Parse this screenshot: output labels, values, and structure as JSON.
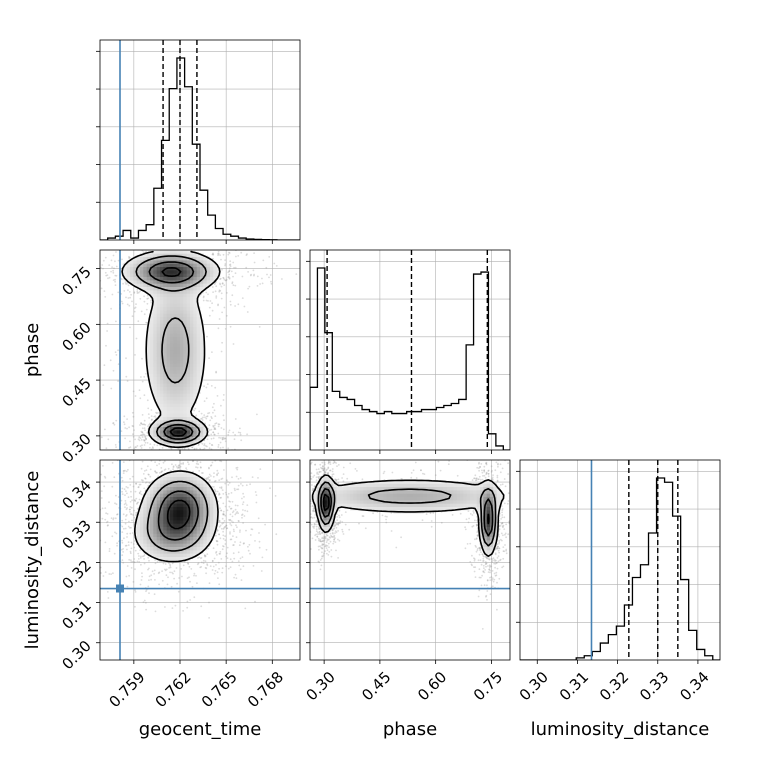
{
  "chart_data": {
    "type": "corner",
    "title": "",
    "parameters": [
      "geocent_time",
      "phase",
      "luminosity_distance"
    ],
    "colors": {
      "hist_line": "#000000",
      "truth": "#4682b4",
      "grid": "#b0b0b0",
      "points": "#9a9a9a",
      "density_dark": "#111111"
    },
    "axis_labels": {
      "x": [
        "geocent_time",
        "phase",
        "luminosity_distance"
      ],
      "y": [
        "",
        "phase",
        "luminosity_distance"
      ]
    },
    "ranges": [
      [
        0.7568,
        0.7698
      ],
      [
        0.262,
        0.8
      ],
      [
        0.2957,
        0.3455
      ]
    ],
    "ticks": {
      "geocent_time": [
        "0.759",
        "0.762",
        "0.765",
        "0.768"
      ],
      "phase": [
        "0.30",
        "0.45",
        "0.60",
        "0.75"
      ],
      "luminosity_distance": [
        "0.30",
        "0.31",
        "0.32",
        "0.33",
        "0.34"
      ]
    },
    "truth_values": [
      0.7581,
      null,
      0.3135
    ],
    "quantiles": [
      [
        0.7609,
        0.762,
        0.7631
      ],
      [
        0.308,
        0.535,
        0.739
      ],
      [
        0.3228,
        0.33,
        0.335
      ]
    ],
    "histograms": {
      "geocent_time": {
        "bin_edges": [
          0.7568,
          0.7573,
          0.7578,
          0.7583,
          0.7588,
          0.7593,
          0.7598,
          0.7603,
          0.7608,
          0.7613,
          0.7618,
          0.7623,
          0.7628,
          0.7633,
          0.7638,
          0.7643,
          0.7648,
          0.7653,
          0.7658,
          0.7663,
          0.7668,
          0.7673,
          0.7678,
          0.7683,
          0.7688,
          0.7693,
          0.7698
        ],
        "counts": [
          0.0,
          0.01,
          0.02,
          0.05,
          0.01,
          0.05,
          0.08,
          0.27,
          0.52,
          0.79,
          0.95,
          0.8,
          0.5,
          0.26,
          0.13,
          0.06,
          0.03,
          0.02,
          0.01,
          0.005,
          0.003,
          0.002,
          0.001,
          0,
          0,
          0
        ]
      },
      "phase": {
        "bin_edges": [
          0.262,
          0.282,
          0.302,
          0.322,
          0.342,
          0.362,
          0.382,
          0.402,
          0.422,
          0.442,
          0.462,
          0.482,
          0.502,
          0.522,
          0.542,
          0.562,
          0.582,
          0.602,
          0.622,
          0.642,
          0.662,
          0.682,
          0.702,
          0.722,
          0.742,
          0.762,
          0.782,
          0.8
        ],
        "counts": [
          0.31,
          0.9,
          0.58,
          0.29,
          0.26,
          0.25,
          0.22,
          0.2,
          0.19,
          0.18,
          0.19,
          0.18,
          0.18,
          0.19,
          0.19,
          0.2,
          0.2,
          0.21,
          0.22,
          0.23,
          0.25,
          0.52,
          0.87,
          0.88,
          0.08,
          0.02,
          0.0
        ]
      },
      "luminosity_distance": {
        "bin_edges": [
          0.2957,
          0.2977,
          0.2997,
          0.3017,
          0.3037,
          0.3057,
          0.3077,
          0.3097,
          0.3117,
          0.3137,
          0.3157,
          0.3177,
          0.3197,
          0.3217,
          0.3237,
          0.3257,
          0.3277,
          0.3297,
          0.3317,
          0.3337,
          0.3357,
          0.3377,
          0.3397,
          0.3417,
          0.3437,
          0.3455
        ],
        "counts": [
          0.0,
          0.0,
          0.0,
          0.0,
          0.0,
          0.0,
          0.0,
          0.01,
          0.02,
          0.04,
          0.08,
          0.12,
          0.16,
          0.26,
          0.39,
          0.45,
          0.6,
          0.86,
          0.84,
          0.68,
          0.38,
          0.14,
          0.05,
          0.02,
          0.0
        ]
      }
    },
    "density_peaks": {
      "phase_vs_geocent_time": [
        {
          "x": 0.7619,
          "y": 0.31,
          "sx": 0.0009,
          "sy": 0.018,
          "w": 1.0
        },
        {
          "x": 0.7614,
          "y": 0.742,
          "sx": 0.0016,
          "sy": 0.028,
          "w": 0.9
        },
        {
          "x": 0.7617,
          "y": 0.53,
          "sx": 0.0012,
          "sy": 0.12,
          "w": 0.45
        }
      ],
      "luminosity_distance_vs_geocent_time": [
        {
          "x": 0.762,
          "y": 0.3338,
          "sx": 0.0012,
          "sy": 0.0045,
          "w": 1.0
        },
        {
          "x": 0.7615,
          "y": 0.327,
          "sx": 0.0014,
          "sy": 0.004,
          "w": 0.55
        }
      ],
      "luminosity_distance_vs_phase": [
        {
          "x": 0.305,
          "y": 0.3345,
          "sx": 0.012,
          "sy": 0.0035,
          "w": 1.0
        },
        {
          "x": 0.742,
          "y": 0.3305,
          "sx": 0.013,
          "sy": 0.0045,
          "w": 0.95
        },
        {
          "x": 0.53,
          "y": 0.3365,
          "sx": 0.16,
          "sy": 0.0025,
          "w": 0.45
        }
      ]
    }
  }
}
